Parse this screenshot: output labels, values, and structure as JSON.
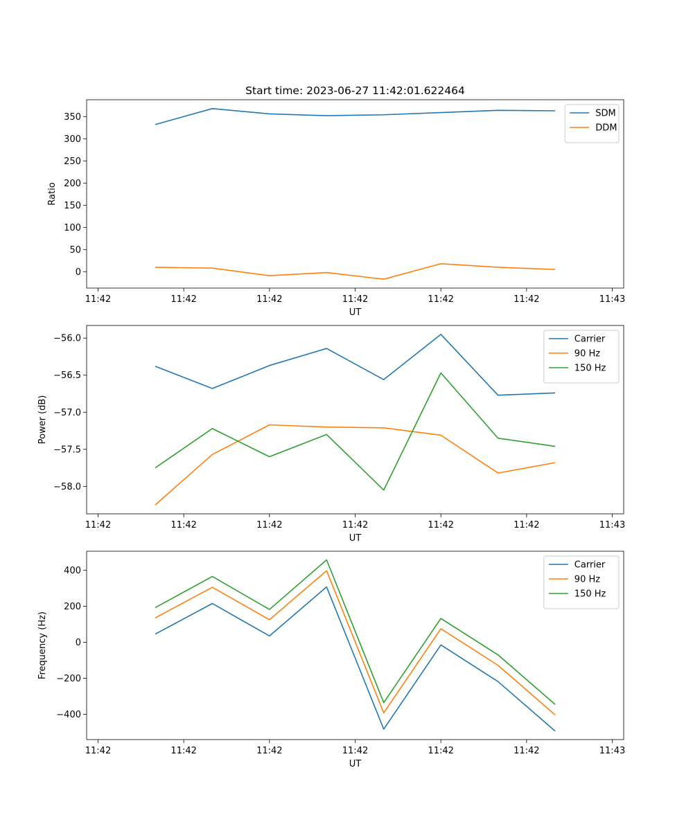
{
  "chart_data": [
    {
      "type": "line",
      "title": "Start time: 2023-06-27 11:42:01.622464",
      "xlabel": "UT",
      "ylabel": "Ratio",
      "x": [
        1.5,
        2.5,
        3.5,
        4.5,
        5.5,
        6.5,
        7.5,
        8.5
      ],
      "xlim": [
        0.3,
        9.7
      ],
      "xticks": [
        0.5,
        2.0,
        3.5,
        5.0,
        6.5,
        8.0,
        9.5
      ],
      "xtick_labels": [
        "11:42",
        "11:42",
        "11:42",
        "11:42",
        "11:42",
        "11:42",
        "11:43"
      ],
      "ylim": [
        -37,
        388
      ],
      "yticks": [
        0,
        50,
        100,
        150,
        200,
        250,
        300,
        350
      ],
      "ytick_labels": [
        "0",
        "50",
        "100",
        "150",
        "200",
        "250",
        "300",
        "350"
      ],
      "legend": "top-right",
      "grid": false,
      "series": [
        {
          "name": "SDM",
          "color": "#1f77b4",
          "values": [
            332,
            368,
            356,
            352,
            354,
            359,
            364,
            363
          ]
        },
        {
          "name": "DDM",
          "color": "#ff7f0e",
          "values": [
            10,
            8,
            -9,
            -2,
            -17,
            18,
            10,
            5
          ]
        }
      ]
    },
    {
      "type": "line",
      "xlabel": "UT",
      "ylabel": "Power (dB)",
      "x": [
        1.5,
        2.5,
        3.5,
        4.5,
        5.5,
        6.5,
        7.5,
        8.5
      ],
      "xlim": [
        0.3,
        9.7
      ],
      "xticks": [
        0.5,
        2.0,
        3.5,
        5.0,
        6.5,
        8.0,
        9.5
      ],
      "xtick_labels": [
        "11:42",
        "11:42",
        "11:42",
        "11:42",
        "11:42",
        "11:42",
        "11:43"
      ],
      "ylim": [
        -58.37,
        -55.83
      ],
      "yticks": [
        -58.0,
        -57.5,
        -57.0,
        -56.5,
        -56.0
      ],
      "ytick_labels": [
        "−58.0",
        "−57.5",
        "−57.0",
        "−56.5",
        "−56.0"
      ],
      "legend": "top-right",
      "grid": false,
      "series": [
        {
          "name": "Carrier",
          "color": "#1f77b4",
          "values": [
            -56.38,
            -56.68,
            -56.37,
            -56.14,
            -56.56,
            -55.95,
            -56.77,
            -56.74
          ]
        },
        {
          "name": "90 Hz",
          "color": "#ff7f0e",
          "values": [
            -58.25,
            -57.57,
            -57.17,
            -57.2,
            -57.21,
            -57.31,
            -57.82,
            -57.68
          ]
        },
        {
          "name": "150 Hz",
          "color": "#2ca02c",
          "values": [
            -57.75,
            -57.22,
            -57.6,
            -57.3,
            -58.05,
            -56.47,
            -57.35,
            -57.46
          ]
        }
      ]
    },
    {
      "type": "line",
      "xlabel": "UT",
      "ylabel": "Frequency (Hz)",
      "x": [
        1.5,
        2.5,
        3.5,
        4.5,
        5.5,
        6.5,
        7.5,
        8.5
      ],
      "xlim": [
        0.3,
        9.7
      ],
      "xticks": [
        0.5,
        2.0,
        3.5,
        5.0,
        6.5,
        8.0,
        9.5
      ],
      "xtick_labels": [
        "11:42",
        "11:42",
        "11:42",
        "11:42",
        "11:42",
        "11:42",
        "11:43"
      ],
      "ylim": [
        -540,
        505
      ],
      "yticks": [
        -400,
        -200,
        0,
        200,
        400
      ],
      "ytick_labels": [
        "−400",
        "−200",
        "0",
        "200",
        "400"
      ],
      "legend": "top-right",
      "grid": false,
      "series": [
        {
          "name": "Carrier",
          "color": "#1f77b4",
          "values": [
            45,
            215,
            35,
            307,
            -482,
            -15,
            -218,
            -493
          ]
        },
        {
          "name": "90 Hz",
          "color": "#ff7f0e",
          "values": [
            135,
            305,
            125,
            397,
            -392,
            75,
            -128,
            -403
          ]
        },
        {
          "name": "150 Hz",
          "color": "#2ca02c",
          "values": [
            192,
            365,
            182,
            457,
            -335,
            132,
            -70,
            -345
          ]
        }
      ]
    }
  ]
}
